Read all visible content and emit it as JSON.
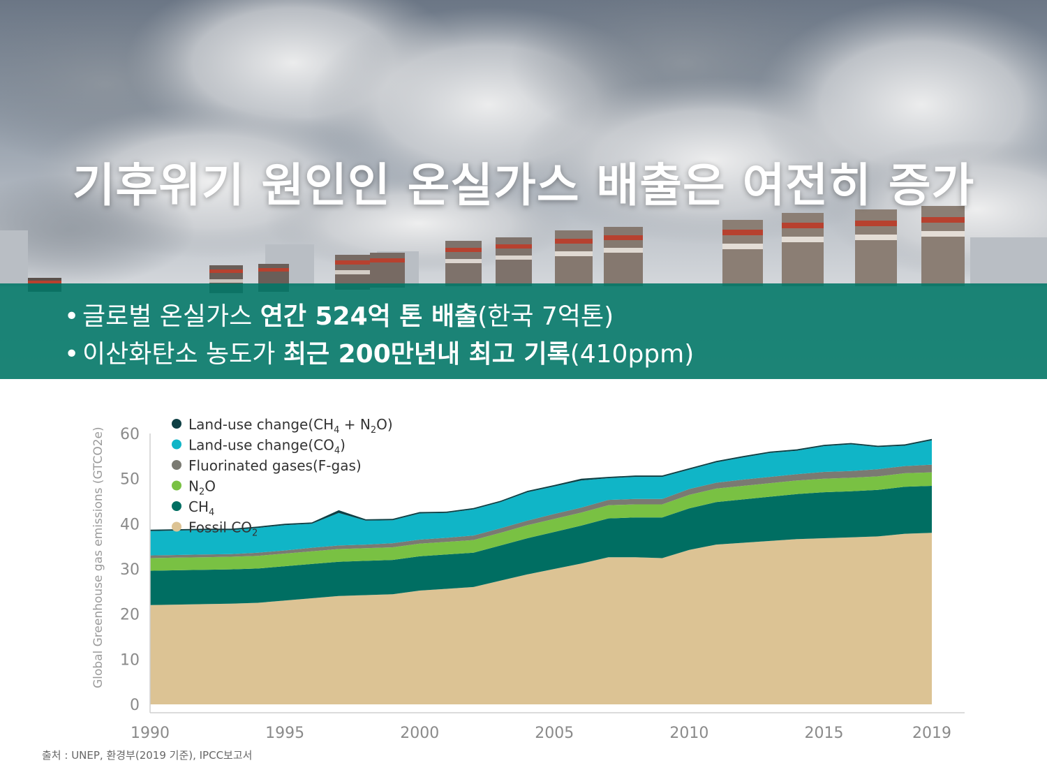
{
  "hero": {
    "title": "기후위기 원인인 온실가스 배출은 여전히 증가"
  },
  "band": {
    "bullet1": {
      "bullet": "•",
      "normal": "글로벌 온실가스 ",
      "bold": "연간 524억 톤 배출",
      "suffix": "(한국 7억톤)"
    },
    "bullet2": {
      "bullet": "•",
      "normal": "이산화탄소 농도가 ",
      "bold": "최근 200만년내 최고 기록",
      "suffix": "(410ppm)"
    }
  },
  "source": "출처 : UNEP, 환경부(2019 기준), IPCC보고서",
  "colors": {
    "band": "#00766a",
    "fossil": "#dcc394",
    "ch4": "#006e62",
    "n2o": "#79c143",
    "fgas": "#7a7a72",
    "luc_co2": "#10b5c7",
    "luc_ch4n2o": "#0e3f44",
    "axis_text": "#8a8a8a"
  },
  "chart_data": {
    "type": "area",
    "stacked": true,
    "ylabel": "Global Greenhouse gas emissions (GTCO2e)",
    "ylim": [
      0,
      60
    ],
    "yticks": [
      "0",
      "10",
      "20",
      "30",
      "40",
      "50",
      "60"
    ],
    "xticks": [
      "1990",
      "1995",
      "2000",
      "2005",
      "2010",
      "2015",
      "2019"
    ],
    "x": [
      1990,
      1991,
      1992,
      1993,
      1994,
      1995,
      1996,
      1997,
      1998,
      1999,
      2000,
      2001,
      2002,
      2003,
      2004,
      2005,
      2006,
      2007,
      2008,
      2009,
      2010,
      2011,
      2012,
      2013,
      2014,
      2015,
      2016,
      2017,
      2018,
      2019
    ],
    "legend_position": "top-left",
    "series": [
      {
        "name": "Fossil CO2",
        "legend": "Fossil CO",
        "sub": "2",
        "sub2": "",
        "legend_tail": "",
        "color": "#dcc394",
        "values": [
          22.0,
          22.1,
          22.2,
          22.3,
          22.5,
          23.0,
          23.5,
          24.0,
          24.2,
          24.4,
          25.2,
          25.6,
          26.0,
          27.4,
          28.8,
          30.0,
          31.2,
          32.6,
          32.6,
          32.4,
          34.2,
          35.4,
          35.8,
          36.2,
          36.6,
          36.8,
          37.0,
          37.2,
          37.8,
          38.0
        ]
      },
      {
        "name": "CH4",
        "legend": "CH",
        "sub": "4",
        "sub2": "",
        "legend_tail": "",
        "color": "#006e62",
        "values": [
          7.6,
          7.6,
          7.6,
          7.6,
          7.6,
          7.6,
          7.6,
          7.6,
          7.6,
          7.6,
          7.6,
          7.6,
          7.6,
          7.8,
          8.0,
          8.2,
          8.4,
          8.6,
          8.8,
          9.0,
          9.2,
          9.4,
          9.6,
          9.8,
          10.0,
          10.2,
          10.2,
          10.3,
          10.4,
          10.4
        ]
      },
      {
        "name": "N2O",
        "legend": "N",
        "sub": "2",
        "sub2": "",
        "legend_tail": "O",
        "color": "#79c143",
        "values": [
          2.8,
          2.8,
          2.8,
          2.8,
          2.8,
          2.8,
          2.8,
          2.8,
          2.8,
          2.8,
          2.8,
          2.8,
          2.8,
          2.8,
          2.9,
          2.9,
          2.9,
          2.9,
          2.9,
          2.9,
          3.0,
          3.0,
          3.0,
          3.0,
          3.0,
          3.0,
          3.0,
          3.0,
          3.0,
          3.0
        ]
      },
      {
        "name": "Fluorinated gases(F-gas)",
        "legend": "Fluorinated gases(F-gas)",
        "sub": "",
        "sub2": "",
        "legend_tail": "",
        "color": "#7a7a72",
        "values": [
          0.6,
          0.6,
          0.6,
          0.6,
          0.7,
          0.7,
          0.8,
          0.8,
          0.8,
          0.9,
          0.9,
          0.9,
          1.0,
          1.0,
          1.0,
          1.1,
          1.1,
          1.2,
          1.2,
          1.2,
          1.3,
          1.3,
          1.4,
          1.4,
          1.4,
          1.5,
          1.5,
          1.6,
          1.6,
          1.7
        ]
      },
      {
        "name": "Land-use change(CO4)",
        "legend": "Land-use change(CO",
        "sub": "4",
        "sub2": "",
        "legend_tail": ")",
        "color": "#10b5c7",
        "values": [
          5.4,
          5.4,
          5.4,
          5.3,
          5.5,
          5.6,
          5.3,
          7.2,
          5.3,
          5.1,
          5.8,
          5.5,
          5.8,
          5.8,
          6.3,
          6.1,
          6.0,
          4.8,
          4.9,
          4.9,
          4.3,
          4.5,
          4.9,
          5.3,
          5.2,
          5.7,
          5.9,
          4.9,
          4.5,
          5.4
        ]
      },
      {
        "name": "Land-use change(CH4 + N2O)",
        "legend": "Land-use change(CH",
        "sub": "4",
        "sub2": "2",
        "legend_tail": "O)",
        "color": "#0e3f44",
        "values": [
          0.3,
          0.3,
          0.3,
          0.3,
          0.3,
          0.3,
          0.3,
          0.6,
          0.3,
          0.3,
          0.3,
          0.3,
          0.3,
          0.3,
          0.3,
          0.3,
          0.4,
          0.3,
          0.3,
          0.3,
          0.3,
          0.3,
          0.3,
          0.3,
          0.3,
          0.3,
          0.3,
          0.3,
          0.3,
          0.3
        ]
      }
    ]
  }
}
